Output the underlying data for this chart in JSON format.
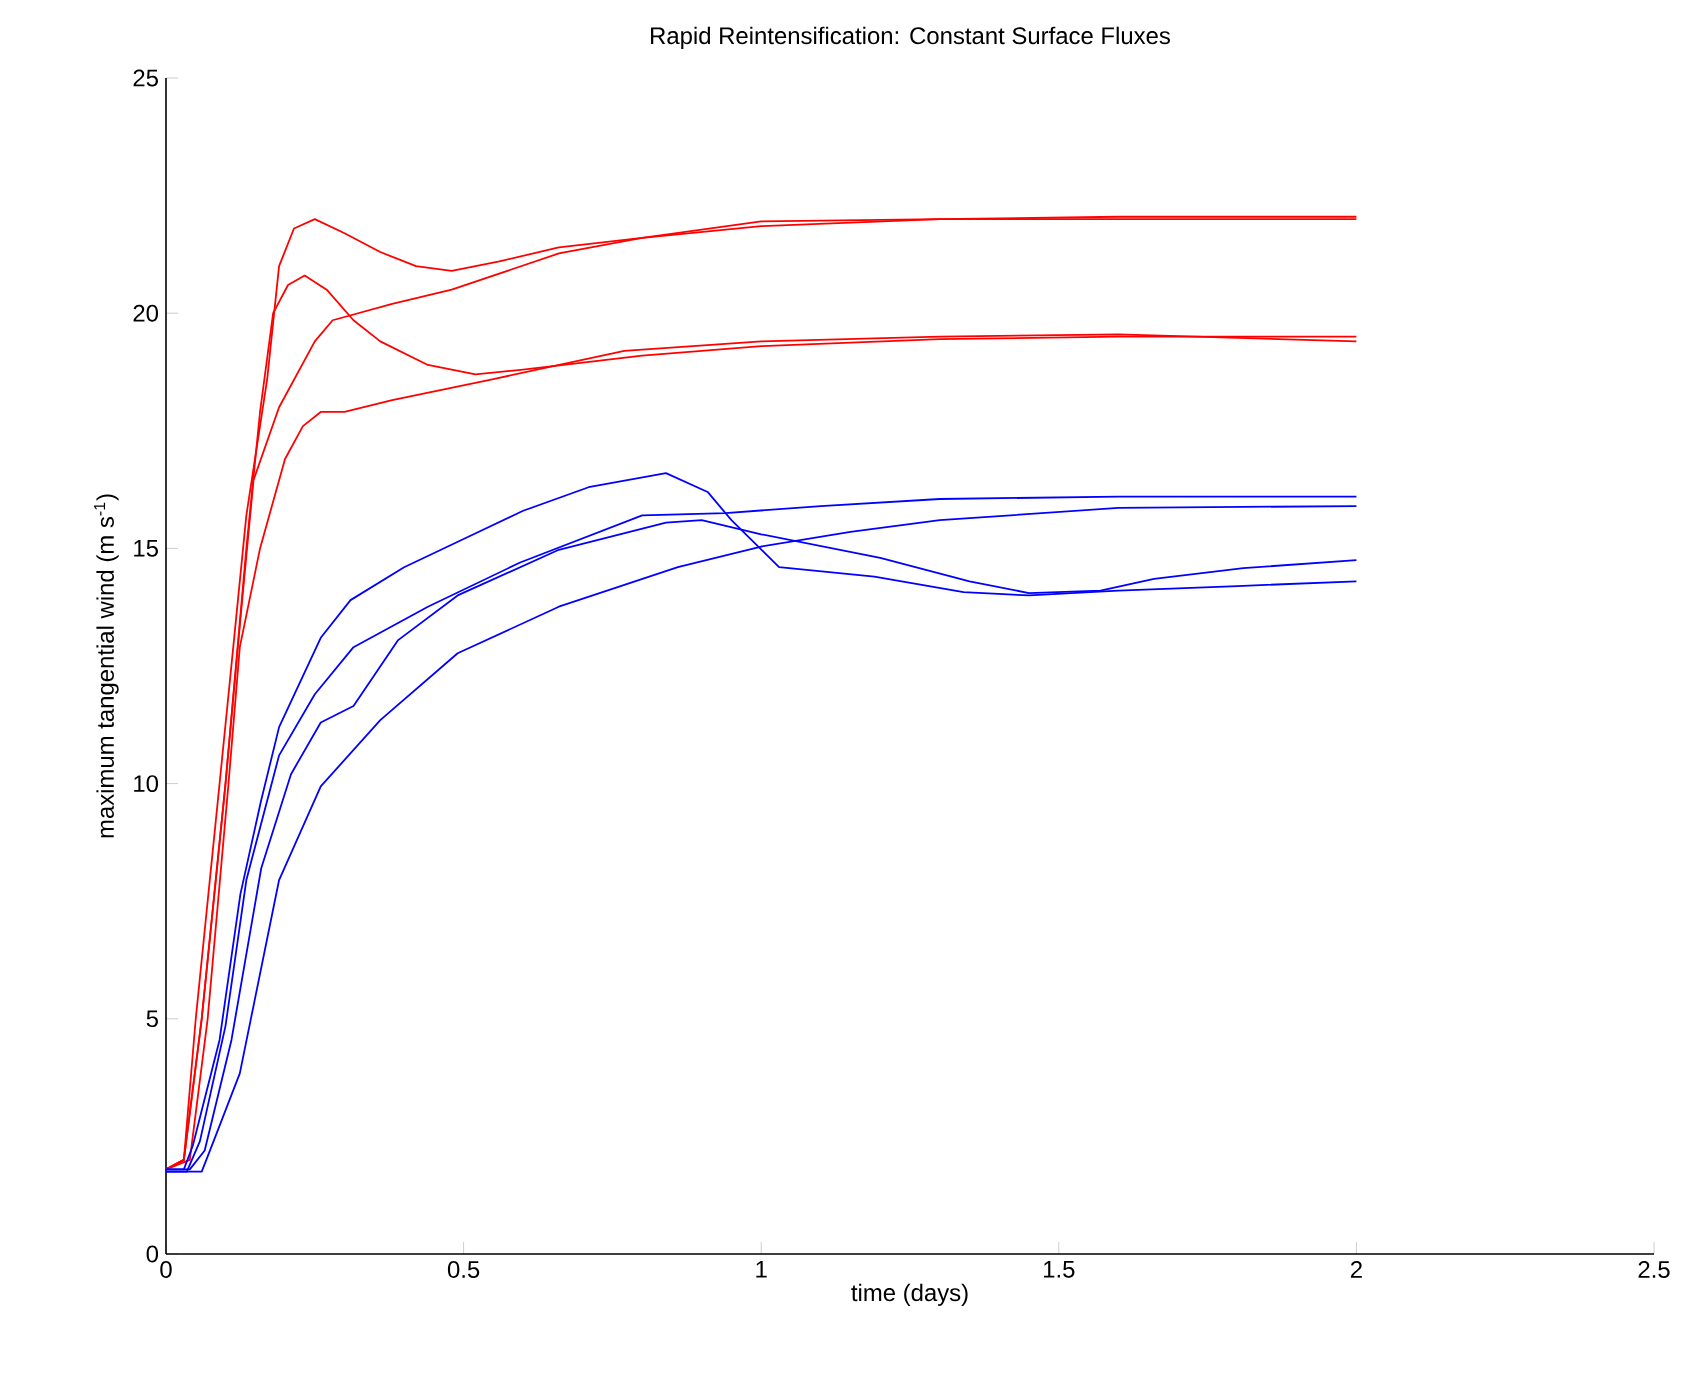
{
  "chart_data": {
    "type": "line",
    "title": "Rapid Reintensification: Constant Surface Fluxes",
    "xlabel": "time (days)",
    "ylabel": "maximum tangential wind (m s$^{-1}$)",
    "xlim": [
      0,
      2.5
    ],
    "ylim": [
      0,
      25
    ],
    "xticks": [
      0,
      0.5,
      1,
      1.5,
      2,
      2.5
    ],
    "yticks": [
      0,
      5,
      10,
      15,
      20,
      25
    ],
    "grid": false,
    "marker": "none",
    "line_style": "solid",
    "series": [
      {
        "color": "#ff0000",
        "x": [
          0,
          0.03,
          0.05,
          0.09,
          0.113,
          0.135,
          0.17,
          0.19,
          0.215,
          0.25,
          0.3,
          0.36,
          0.42,
          0.48,
          0.56,
          0.66,
          0.8,
          1.0,
          1.3,
          1.6,
          2.0
        ],
        "values": [
          1.8,
          2.0,
          5,
          10,
          12.9,
          15.7,
          18.6,
          21.0,
          21.8,
          22.0,
          21.7,
          21.3,
          21.0,
          20.9,
          21.1,
          21.4,
          21.6,
          21.85,
          22.0,
          22.05,
          22.05
        ]
      },
      {
        "color": "#ff0000",
        "x": [
          0,
          0.03,
          0.06,
          0.1,
          0.135,
          0.158,
          0.18,
          0.205,
          0.233,
          0.27,
          0.315,
          0.36,
          0.44,
          0.52,
          0.6,
          0.8,
          1.0,
          1.3,
          1.6,
          2.0
        ],
        "values": [
          1.8,
          2.0,
          5,
          10,
          15.0,
          17.9,
          20.0,
          20.6,
          20.8,
          20.5,
          19.85,
          19.4,
          18.9,
          18.7,
          18.8,
          19.1,
          19.3,
          19.45,
          19.5,
          19.5
        ]
      },
      {
        "color": "#ff0000",
        "x": [
          0,
          0.03,
          0.06,
          0.1,
          0.125,
          0.147,
          0.19,
          0.25,
          0.28,
          0.38,
          0.48,
          0.66,
          0.8,
          1.0,
          1.3,
          1.6,
          2.0
        ],
        "values": [
          1.8,
          2.0,
          5,
          10,
          13.5,
          16.45,
          18.0,
          19.4,
          19.85,
          20.2,
          20.5,
          21.27,
          21.6,
          21.95,
          22.0,
          22.0,
          22.0
        ]
      },
      {
        "color": "#ff0000",
        "x": [
          0,
          0.04,
          0.07,
          0.105,
          0.124,
          0.158,
          0.2,
          0.23,
          0.26,
          0.3,
          0.38,
          0.55,
          0.77,
          1.0,
          1.3,
          1.6,
          2.0
        ],
        "values": [
          1.8,
          2.0,
          5,
          10,
          12.9,
          15.0,
          16.9,
          17.6,
          17.9,
          17.9,
          18.15,
          18.6,
          19.2,
          19.4,
          19.5,
          19.55,
          19.4
        ]
      },
      {
        "color": "#0000ff",
        "x": [
          0,
          0.03,
          0.045,
          0.09,
          0.125,
          0.16,
          0.19,
          0.26,
          0.31,
          0.4,
          0.5,
          0.6,
          0.71,
          0.84,
          0.91,
          0.95,
          1.03,
          1.19,
          1.34,
          1.45,
          1.6,
          1.8,
          2.0
        ],
        "values": [
          1.8,
          1.8,
          2.3,
          4.55,
          7.65,
          9.65,
          11.2,
          13.1,
          13.9,
          14.6,
          15.2,
          15.8,
          16.3,
          16.6,
          16.2,
          15.6,
          14.6,
          14.4,
          14.07,
          14.0,
          14.1,
          14.2,
          14.3
        ]
      },
      {
        "color": "#0000ff",
        "x": [
          0,
          0.04,
          0.065,
          0.11,
          0.16,
          0.21,
          0.26,
          0.315,
          0.39,
          0.49,
          0.66,
          0.84,
          0.9,
          1.0,
          1.2,
          1.35,
          1.45,
          1.57,
          1.66,
          1.81,
          2.0
        ],
        "values": [
          1.8,
          1.8,
          2.2,
          4.55,
          8.2,
          10.2,
          11.3,
          11.65,
          13.05,
          14.0,
          14.97,
          15.55,
          15.6,
          15.3,
          14.8,
          14.3,
          14.05,
          14.1,
          14.35,
          14.58,
          14.75
        ]
      },
      {
        "color": "#0000ff",
        "x": [
          0,
          0.035,
          0.057,
          0.1,
          0.135,
          0.19,
          0.25,
          0.315,
          0.44,
          0.595,
          0.8,
          0.94,
          1.1,
          1.3,
          1.6,
          2.0
        ],
        "values": [
          1.75,
          1.75,
          2.4,
          4.85,
          7.95,
          10.6,
          11.9,
          12.9,
          13.76,
          14.7,
          15.7,
          15.75,
          15.9,
          16.05,
          16.1,
          16.1
        ]
      },
      {
        "color": "#0000ff",
        "x": [
          0,
          0.06,
          0.08,
          0.124,
          0.19,
          0.26,
          0.36,
          0.49,
          0.66,
          0.86,
          1.0,
          1.15,
          1.3,
          1.6,
          2.0
        ],
        "values": [
          1.75,
          1.75,
          2.4,
          3.84,
          7.95,
          9.94,
          11.35,
          12.77,
          13.76,
          14.6,
          15.04,
          15.35,
          15.6,
          15.86,
          15.9
        ]
      }
    ]
  }
}
